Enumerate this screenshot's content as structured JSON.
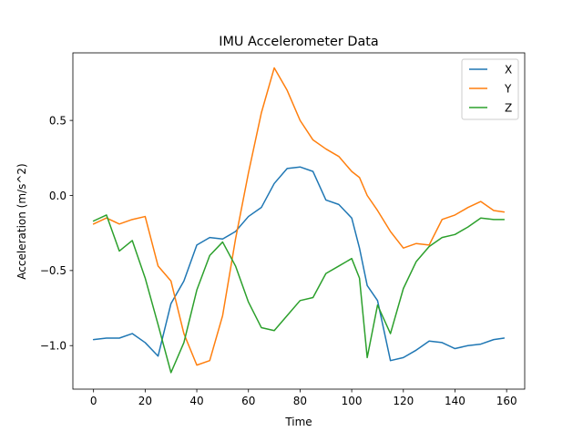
{
  "chart_data": {
    "type": "line",
    "title": "IMU Accelerometer Data",
    "xlabel": "Time",
    "ylabel": "Acceleration (m/s^2)",
    "xlim": [
      -8,
      167
    ],
    "ylim": [
      -1.29,
      0.95
    ],
    "xticks": [
      0,
      20,
      40,
      60,
      80,
      100,
      120,
      140,
      160
    ],
    "yticks": [
      -1.0,
      -0.5,
      0.0,
      0.5
    ],
    "xtick_labels": [
      "0",
      "20",
      "40",
      "60",
      "80",
      "100",
      "120",
      "140",
      "160"
    ],
    "ytick_labels": [
      "−1.0",
      "−0.5",
      "0.0",
      "0.5"
    ],
    "grid": false,
    "legend_position": "top-right",
    "x": [
      0,
      5,
      10,
      15,
      20,
      25,
      30,
      35,
      40,
      45,
      50,
      55,
      60,
      65,
      70,
      75,
      80,
      85,
      90,
      95,
      100,
      103,
      106,
      110,
      115,
      120,
      125,
      130,
      135,
      140,
      145,
      150,
      155,
      159
    ],
    "series": [
      {
        "name": "X",
        "color": "#1f77b4",
        "values": [
          -0.96,
          -0.95,
          -0.95,
          -0.92,
          -0.98,
          -1.07,
          -0.72,
          -0.57,
          -0.33,
          -0.28,
          -0.29,
          -0.24,
          -0.14,
          -0.08,
          0.08,
          0.18,
          0.19,
          0.16,
          -0.03,
          -0.06,
          -0.15,
          -0.35,
          -0.6,
          -0.7,
          -1.1,
          -1.08,
          -1.03,
          -0.97,
          -0.98,
          -1.02,
          -1.0,
          -0.99,
          -0.96,
          -0.95
        ]
      },
      {
        "name": "Y",
        "color": "#ff7f0e",
        "values": [
          -0.19,
          -0.15,
          -0.19,
          -0.16,
          -0.14,
          -0.47,
          -0.57,
          -0.92,
          -1.13,
          -1.1,
          -0.8,
          -0.29,
          0.15,
          0.55,
          0.85,
          0.7,
          0.5,
          0.37,
          0.31,
          0.26,
          0.16,
          0.12,
          0.0,
          -0.1,
          -0.24,
          -0.35,
          -0.32,
          -0.33,
          -0.16,
          -0.13,
          -0.08,
          -0.04,
          -0.1,
          -0.11
        ]
      },
      {
        "name": "Z",
        "color": "#2ca02c",
        "values": [
          -0.17,
          -0.13,
          -0.37,
          -0.3,
          -0.55,
          -0.86,
          -1.18,
          -0.98,
          -0.63,
          -0.4,
          -0.31,
          -0.47,
          -0.71,
          -0.88,
          -0.9,
          -0.8,
          -0.7,
          -0.68,
          -0.52,
          -0.47,
          -0.42,
          -0.55,
          -1.08,
          -0.73,
          -0.92,
          -0.62,
          -0.44,
          -0.34,
          -0.28,
          -0.26,
          -0.21,
          -0.15,
          -0.16,
          -0.16
        ]
      }
    ]
  }
}
